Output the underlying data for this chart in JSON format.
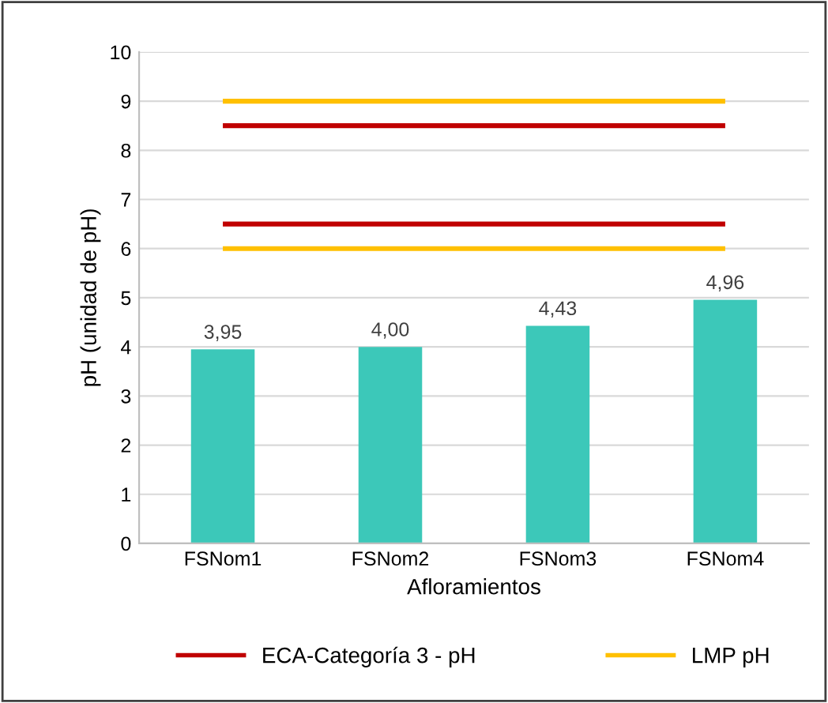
{
  "chart_data": {
    "type": "bar",
    "xlabel": "Afloramientos",
    "ylabel": "pH (unidad de pH)",
    "categories": [
      "FSNom1",
      "FSNom2",
      "FSNom3",
      "FSNom4"
    ],
    "series": [
      {
        "color": "#3cc8b9",
        "values": [
          3.95,
          4.0,
          4.43,
          4.96
        ],
        "value_labels": [
          "3,95",
          "4,00",
          "4,43",
          "4,96"
        ]
      },
      {
        "type": "line",
        "name": "ECA-Categoría 3 - pH",
        "color": "#c00000",
        "values": [
          8.5,
          8.5,
          8.5,
          8.5
        ]
      },
      {
        "type": "line",
        "color": "#c00000",
        "values": [
          6.5,
          6.5,
          6.5,
          6.5
        ]
      },
      {
        "type": "line",
        "name": "LMP pH",
        "color": "#ffc000",
        "values": [
          9,
          9,
          9,
          9
        ]
      },
      {
        "type": "line",
        "color": "#ffc000",
        "values": [
          6,
          6,
          6,
          6
        ]
      }
    ],
    "ylim": [
      0,
      10
    ],
    "yticks": [
      0,
      1,
      2,
      3,
      4,
      5,
      6,
      7,
      8,
      9,
      10
    ],
    "grid": "y",
    "legend": "bottom"
  }
}
